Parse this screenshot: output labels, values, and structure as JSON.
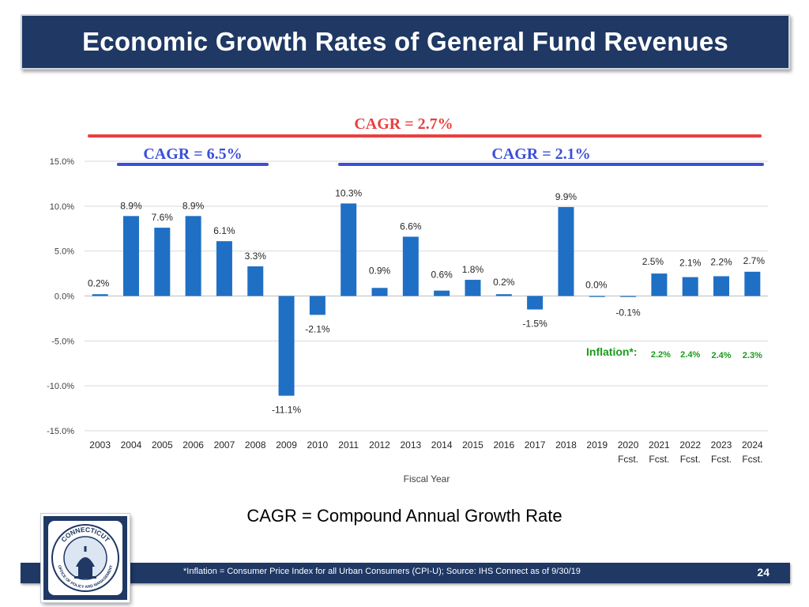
{
  "title": "Economic Growth Rates of General Fund Revenues",
  "cagr_definition": "CAGR = Compound Annual Growth Rate",
  "footnote": "*Inflation = Consumer Price Index for all Urban Consumers (CPI-U); Source: IHS Connect as of 9/30/19",
  "page_number": "24",
  "logo": {
    "text_top": "CONNECTICUT",
    "text_bottom": "OFFICE OF POLICY AND MANAGEMENT"
  },
  "colors": {
    "bar": "#1f6fc5",
    "header_bg": "#1f3864",
    "cagr_overall": "#e84040",
    "cagr_period": "#3b4fd8",
    "inflation": "#1a9a1a"
  },
  "chart_data": {
    "type": "bar",
    "xlabel": "Fiscal Year",
    "ylabel": "",
    "ylim": [
      -15,
      15
    ],
    "yticks": [
      15,
      10,
      5,
      0,
      -5,
      -10,
      -15
    ],
    "ytick_labels": [
      "15.0%",
      "10.0%",
      "5.0%",
      "0.0%",
      "-5.0%",
      "-10.0%",
      "-15.0%"
    ],
    "categories": [
      "2003",
      "2004",
      "2005",
      "2006",
      "2007",
      "2008",
      "2009",
      "2010",
      "2011",
      "2012",
      "2013",
      "2014",
      "2015",
      "2016",
      "2017",
      "2018",
      "2019",
      "2020",
      "2021",
      "2022",
      "2023",
      "2024"
    ],
    "category_sublabels": [
      "",
      "",
      "",
      "",
      "",
      "",
      "",
      "",
      "",
      "",
      "",
      "",
      "",
      "",
      "",
      "",
      "",
      "Fcst.",
      "Fcst.",
      "Fcst.",
      "Fcst.",
      "Fcst."
    ],
    "values": [
      0.2,
      8.9,
      7.6,
      8.9,
      6.1,
      3.3,
      -11.1,
      -2.1,
      10.3,
      0.9,
      6.6,
      0.6,
      1.8,
      0.2,
      -1.5,
      9.9,
      0.0,
      -0.1,
      2.5,
      2.1,
      2.2,
      2.7
    ],
    "data_labels": [
      "0.2%",
      "8.9%",
      "7.6%",
      "8.9%",
      "6.1%",
      "3.3%",
      "-11.1%",
      "-2.1%",
      "10.3%",
      "0.9%",
      "6.6%",
      "0.6%",
      "1.8%",
      "0.2%",
      "-1.5%",
      "9.9%",
      "0.0%",
      "-0.1%",
      "2.5%",
      "2.1%",
      "2.2%",
      "2.7%"
    ],
    "cagr": [
      {
        "label": "CAGR = 2.7%",
        "from": "2003",
        "to": "2024",
        "value": 2.7
      },
      {
        "label": "CAGR = 6.5%",
        "from": "2004",
        "to": "2008",
        "value": 6.5
      },
      {
        "label": "CAGR = 2.1%",
        "from": "2011",
        "to": "2024",
        "value": 2.1
      }
    ],
    "inflation": {
      "label": "Inflation*:",
      "years": [
        "2021",
        "2022",
        "2023",
        "2024"
      ],
      "values": [
        2.2,
        2.4,
        2.4,
        2.3
      ],
      "value_labels": [
        "2.2%",
        "2.4%",
        "2.4%",
        "2.3%"
      ]
    },
    "grid": true
  }
}
